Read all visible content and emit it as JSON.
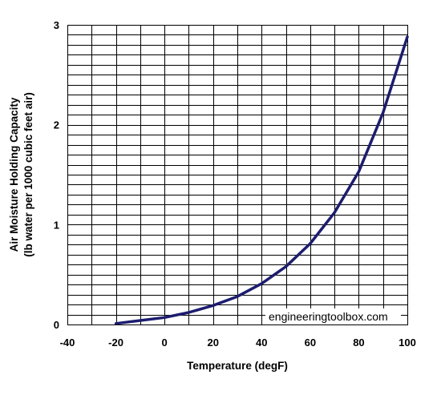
{
  "chart_data": {
    "type": "line",
    "title": "",
    "xlabel": "Temperature (degF)",
    "ylabel": [
      "Air Moisture Holding Capacity",
      "(lb water per 1000 cubic feet air)"
    ],
    "xlim": [
      -40,
      100
    ],
    "ylim": [
      0,
      3
    ],
    "x_ticks": [
      -40,
      -20,
      0,
      20,
      40,
      60,
      80,
      100
    ],
    "y_ticks": [
      0,
      1,
      2,
      3
    ],
    "x_ticks_labels": [
      "-40",
      "-20",
      "0",
      "20",
      "40",
      "60",
      "80",
      "100"
    ],
    "y_ticks_labels": [
      "0",
      "1",
      "2",
      "3"
    ],
    "grid": true,
    "legend": "none",
    "line_color": "#1c1c6e",
    "grid_color": "#000000",
    "annotation": "engineeringtoolbox.com",
    "series": [
      {
        "x": [
          -20,
          -10,
          0,
          10,
          20,
          30,
          40,
          50,
          60,
          70,
          80,
          90,
          100
        ],
        "y": [
          0.01,
          0.04,
          0.07,
          0.12,
          0.19,
          0.28,
          0.41,
          0.58,
          0.81,
          1.12,
          1.53,
          2.12,
          2.88
        ]
      }
    ]
  }
}
